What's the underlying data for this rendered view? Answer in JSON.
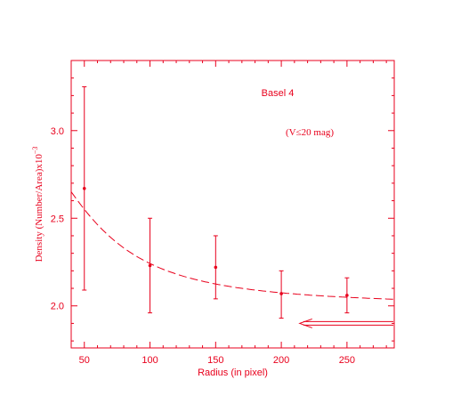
{
  "chart_data": {
    "type": "scatter",
    "title": "Basel 4",
    "annotation": "(V≤20 mag)",
    "xlabel": "Radius (in pixel)",
    "ylabel": "Density (Number/Area)x10",
    "ylabel_exponent": "−3",
    "xlim": [
      40,
      286
    ],
    "ylim": [
      1.76,
      3.4
    ],
    "xticks": [
      50,
      100,
      150,
      200,
      250
    ],
    "yticks": [
      2.0,
      2.5,
      3.0
    ],
    "xtick_labels": [
      "50",
      "100",
      "150",
      "200",
      "250"
    ],
    "ytick_labels": [
      "2.0",
      "2.5",
      "3.0"
    ],
    "series": [
      {
        "x": [
          50,
          100,
          150,
          200,
          250
        ],
        "y": [
          2.67,
          2.23,
          2.22,
          2.07,
          2.06
        ],
        "err_low": [
          0.58,
          0.27,
          0.18,
          0.14,
          0.1
        ],
        "err_high": [
          0.58,
          0.27,
          0.18,
          0.13,
          0.1
        ]
      }
    ],
    "fit_curve": {
      "style": "dashed",
      "background_level": 2.0,
      "amplitude": 0.96,
      "scale_radius": 58
    },
    "arrow": {
      "y": 1.9,
      "direction": "left",
      "x_from": 286,
      "x_to": 214
    },
    "grid": false,
    "color": "#e8001c"
  }
}
